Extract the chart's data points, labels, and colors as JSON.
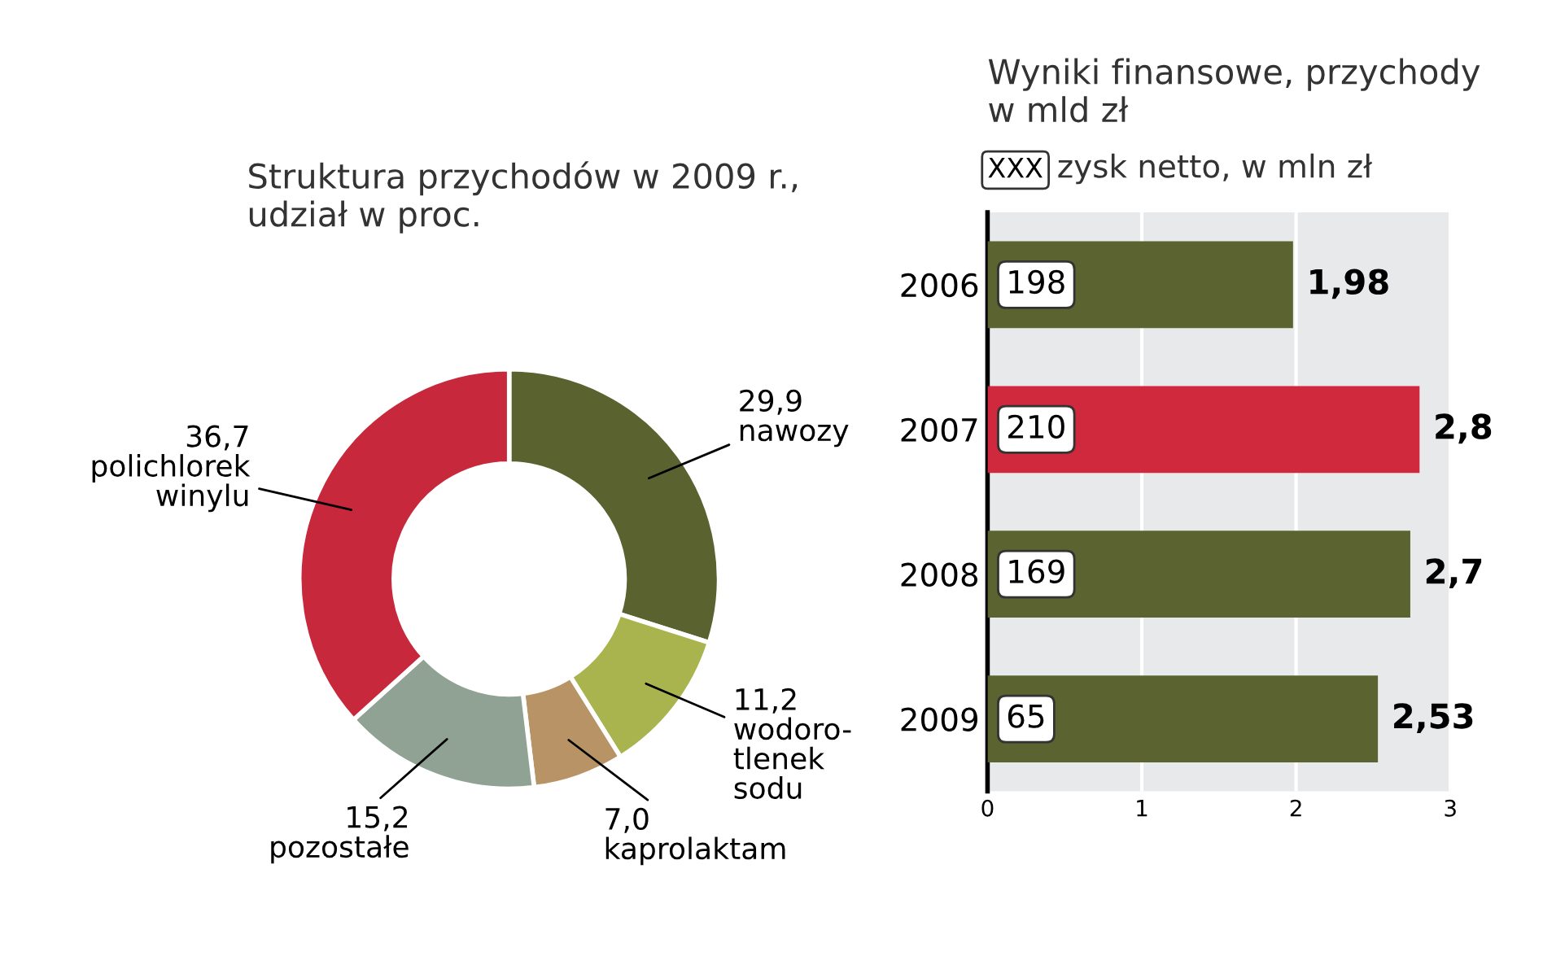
{
  "chart_data": [
    {
      "type": "donut",
      "title": "Struktura przychodów w 2009 r.,\nudział w proc.",
      "categories": [
        "nawozy",
        "wodoro-\ntlenek\nsodu",
        "kaprolaktam",
        "pozostałe",
        "polichlorek winylu"
      ],
      "values": [
        29.9,
        11.2,
        7.0,
        15.2,
        36.7
      ],
      "value_labels": [
        "29,9",
        "11,2",
        "7,0",
        "15,2",
        "36,7"
      ],
      "colors": [
        "#5a6330",
        "#a9b44e",
        "#b89366",
        "#8fa293",
        "#c8283c"
      ]
    },
    {
      "type": "bar",
      "orientation": "horizontal",
      "title": "Wyniki finansowe, przychody",
      "subtitle": "w mld zł",
      "categories": [
        "2006",
        "2007",
        "2008",
        "2009"
      ],
      "values": [
        1.98,
        2.8,
        2.74,
        2.53
      ],
      "value_labels": [
        "1,98",
        "2,8",
        "2,7",
        "2,53"
      ],
      "colors": [
        "#5b6330",
        "#d0283c",
        "#5b6330",
        "#5b6330"
      ],
      "xlim": [
        0,
        3
      ],
      "xticks": [
        0,
        1,
        2,
        3
      ],
      "grid": "x",
      "annotations": [
        "XXX",
        "zysk netto, w mln zł",
        "198",
        "210",
        "169",
        "65"
      ]
    }
  ]
}
